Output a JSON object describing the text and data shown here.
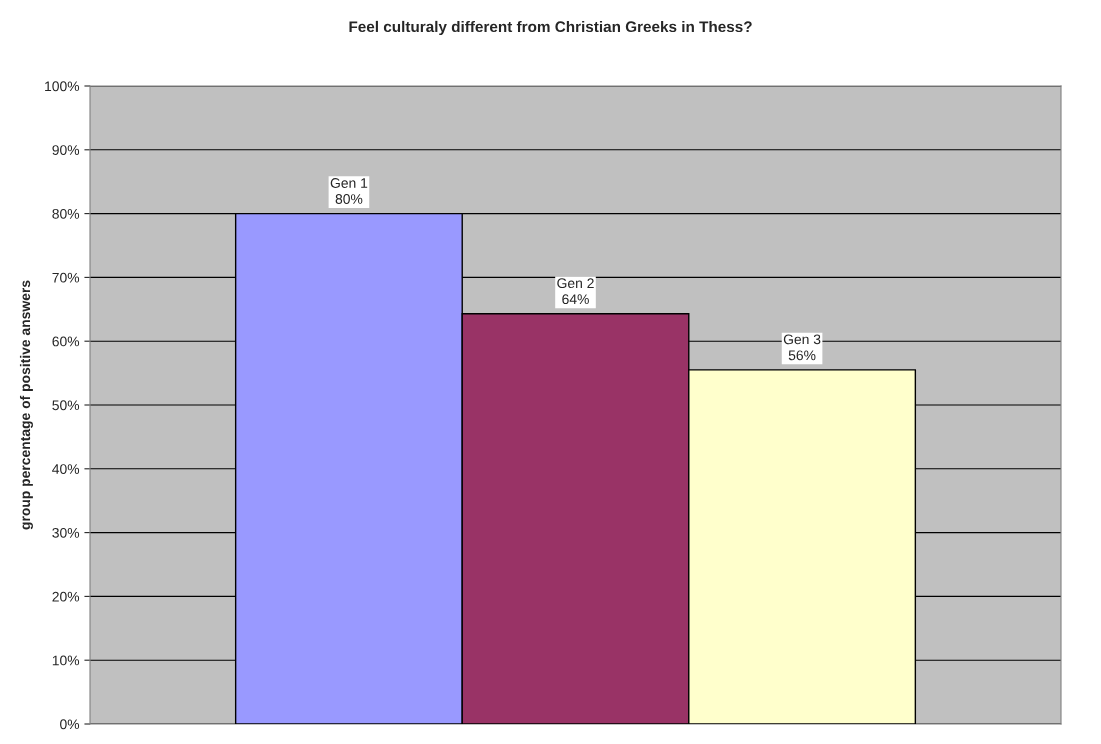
{
  "chart_data": {
    "type": "bar",
    "title": "Feel culturaly different from Christian Greeks in Thess?",
    "ylabel": "group percentage of positive answers",
    "categories": [
      null
    ],
    "series": [
      {
        "name": "Gen 1",
        "color": "#9999ff",
        "values": [
          80
        ],
        "value_labels": [
          "80%"
        ]
      },
      {
        "name": "Gen 2",
        "color": "#993366",
        "values": [
          64.3
        ],
        "value_labels": [
          "64%"
        ]
      },
      {
        "name": "Gen 3",
        "color": "#ffffcc",
        "values": [
          55.5
        ],
        "value_labels": [
          "56%"
        ]
      }
    ],
    "ylim": [
      0,
      100
    ],
    "yticks": [
      {
        "value": 0,
        "label": "0%"
      },
      {
        "value": 10,
        "label": "10%"
      },
      {
        "value": 20,
        "label": "20%"
      },
      {
        "value": 30,
        "label": "30%"
      },
      {
        "value": 40,
        "label": "40%"
      },
      {
        "value": 50,
        "label": "50%"
      },
      {
        "value": 60,
        "label": "60%"
      },
      {
        "value": 70,
        "label": "70%"
      },
      {
        "value": 80,
        "label": "80%"
      },
      {
        "value": 90,
        "label": "90%"
      },
      {
        "value": 100,
        "label": "100%"
      }
    ],
    "grid": "y",
    "legend": false
  }
}
